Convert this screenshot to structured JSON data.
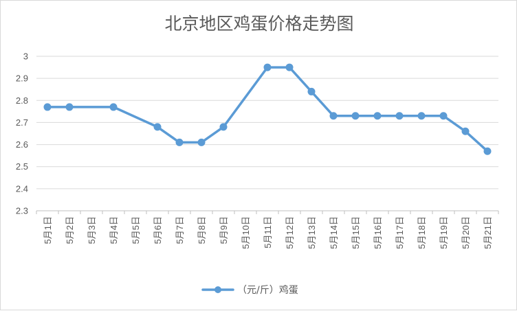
{
  "chart_data": {
    "type": "line",
    "title": "北京地区鸡蛋价格走势图",
    "xlabel": "",
    "ylabel": "",
    "ylim": [
      2.3,
      3.0
    ],
    "yticks": [
      "2.3",
      "2.4",
      "2.5",
      "2.6",
      "2.7",
      "2.8",
      "2.9",
      "3"
    ],
    "grid": true,
    "legend_position": "bottom",
    "categories": [
      "5月1日",
      "5月2日",
      "5月3日",
      "5月4日",
      "5月5日",
      "5月6日",
      "5月7日",
      "5月8日",
      "5月9日",
      "5月10日",
      "5月11日",
      "5月12日",
      "5月13日",
      "5月14日",
      "5月15日",
      "5月16日",
      "5月17日",
      "5月18日",
      "5月19日",
      "5月20日",
      "5月21日"
    ],
    "series": [
      {
        "name": "（元/斤）鸡蛋",
        "color": "#5b9bd5",
        "values": [
          2.77,
          2.77,
          null,
          2.77,
          null,
          2.68,
          2.61,
          2.61,
          2.68,
          null,
          2.95,
          2.95,
          2.84,
          2.73,
          2.73,
          2.73,
          2.73,
          2.73,
          2.73,
          2.66,
          2.57
        ]
      }
    ]
  }
}
